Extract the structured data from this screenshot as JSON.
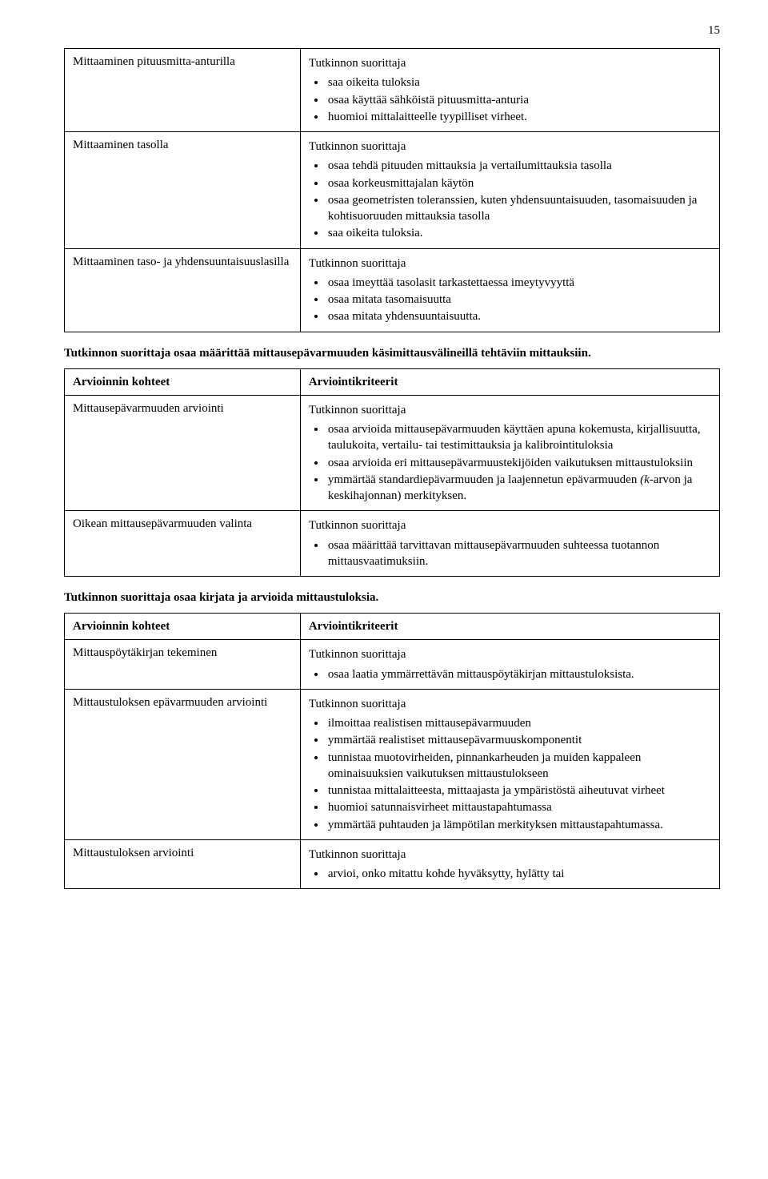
{
  "page_number": "15",
  "tables": [
    {
      "rows": [
        {
          "left": "Mittaaminen pituusmitta-anturilla",
          "intro": "Tutkinnon suorittaja",
          "bullets": [
            "saa oikeita tuloksia",
            "osaa käyttää sähköistä pituusmitta-anturia",
            "huomioi mittalaitteelle tyypilliset virheet."
          ]
        },
        {
          "left": "Mittaaminen tasolla",
          "intro": "Tutkinnon suorittaja",
          "bullets": [
            "osaa tehdä pituuden mittauksia ja vertailumittauksia tasolla",
            "osaa korkeusmittajalan käytön",
            "osaa geometristen toleranssien, kuten yhdensuuntaisuuden, tasomaisuuden ja kohtisuoruuden mittauksia tasolla",
            "saa oikeita tuloksia."
          ]
        },
        {
          "left": "Mittaaminen taso- ja yhdensuuntaisuuslasilla",
          "intro": "Tutkinnon suorittaja",
          "bullets": [
            "osaa imeyttää tasolasit tarkastettaessa imeytyvyyttä",
            "osaa mitata tasomaisuutta",
            "osaa mitata yhdensuuntaisuutta."
          ]
        }
      ]
    },
    {
      "heading": "Tutkinnon suorittaja osaa määrittää mittausepävarmuuden käsimittausvälineillä tehtäviin mittauksiin.",
      "headers": {
        "left": "Arvioinnin kohteet",
        "right": "Arviointikriteerit"
      },
      "rows": [
        {
          "left": "Mittausepävarmuuden arviointi",
          "intro": "Tutkinnon suorittaja",
          "bullets": [
            "osaa arvioida mittausepävarmuuden käyttäen apuna kokemusta, kirjallisuutta, taulukoita, vertailu- tai testimittauksia ja kalibrointituloksia",
            "osaa arvioida eri mittausepävarmuustekijöiden vaikutuksen mittaustuloksiin",
            {
              "prefix": "ymmärtää standardiepävarmuuden ja laajennetun epävarmuuden ",
              "italic": "(k",
              "suffix": "-arvon ja keskihajonnan) merkityksen."
            }
          ]
        },
        {
          "left": "Oikean mittausepävarmuuden valinta",
          "intro": "Tutkinnon suorittaja",
          "bullets": [
            "osaa määrittää tarvittavan mittausepävarmuuden suhteessa tuotannon mittausvaatimuksiin."
          ]
        }
      ]
    },
    {
      "heading": "Tutkinnon suorittaja osaa kirjata ja arvioida mittaustuloksia.",
      "headers": {
        "left": "Arvioinnin kohteet",
        "right": "Arviointikriteerit"
      },
      "rows": [
        {
          "left": "Mittauspöytäkirjan tekeminen",
          "intro": "Tutkinnon suorittaja",
          "bullets": [
            "osaa laatia ymmärrettävän mittauspöytäkirjan mittaustuloksista."
          ]
        },
        {
          "left": "Mittaustuloksen epävarmuuden arviointi",
          "intro": "Tutkinnon suorittaja",
          "bullets": [
            "ilmoittaa realistisen mittausepävarmuuden",
            "ymmärtää realistiset mittausepävarmuuskomponentit",
            "tunnistaa muotovirheiden, pinnankarheuden ja muiden kappaleen ominaisuuksien vaikutuksen mittaustulokseen",
            "tunnistaa mittalaitteesta, mittaajasta ja ympäristöstä aiheutuvat virheet",
            "huomioi satunnaisvirheet mittaustapahtumassa",
            "ymmärtää puhtauden ja lämpötilan merkityksen mittaustapahtumassa."
          ]
        },
        {
          "left": "Mittaustuloksen arviointi",
          "intro": "Tutkinnon suorittaja",
          "bullets": [
            "arvioi, onko mitattu kohde hyväksytty, hylätty tai"
          ]
        }
      ]
    }
  ]
}
